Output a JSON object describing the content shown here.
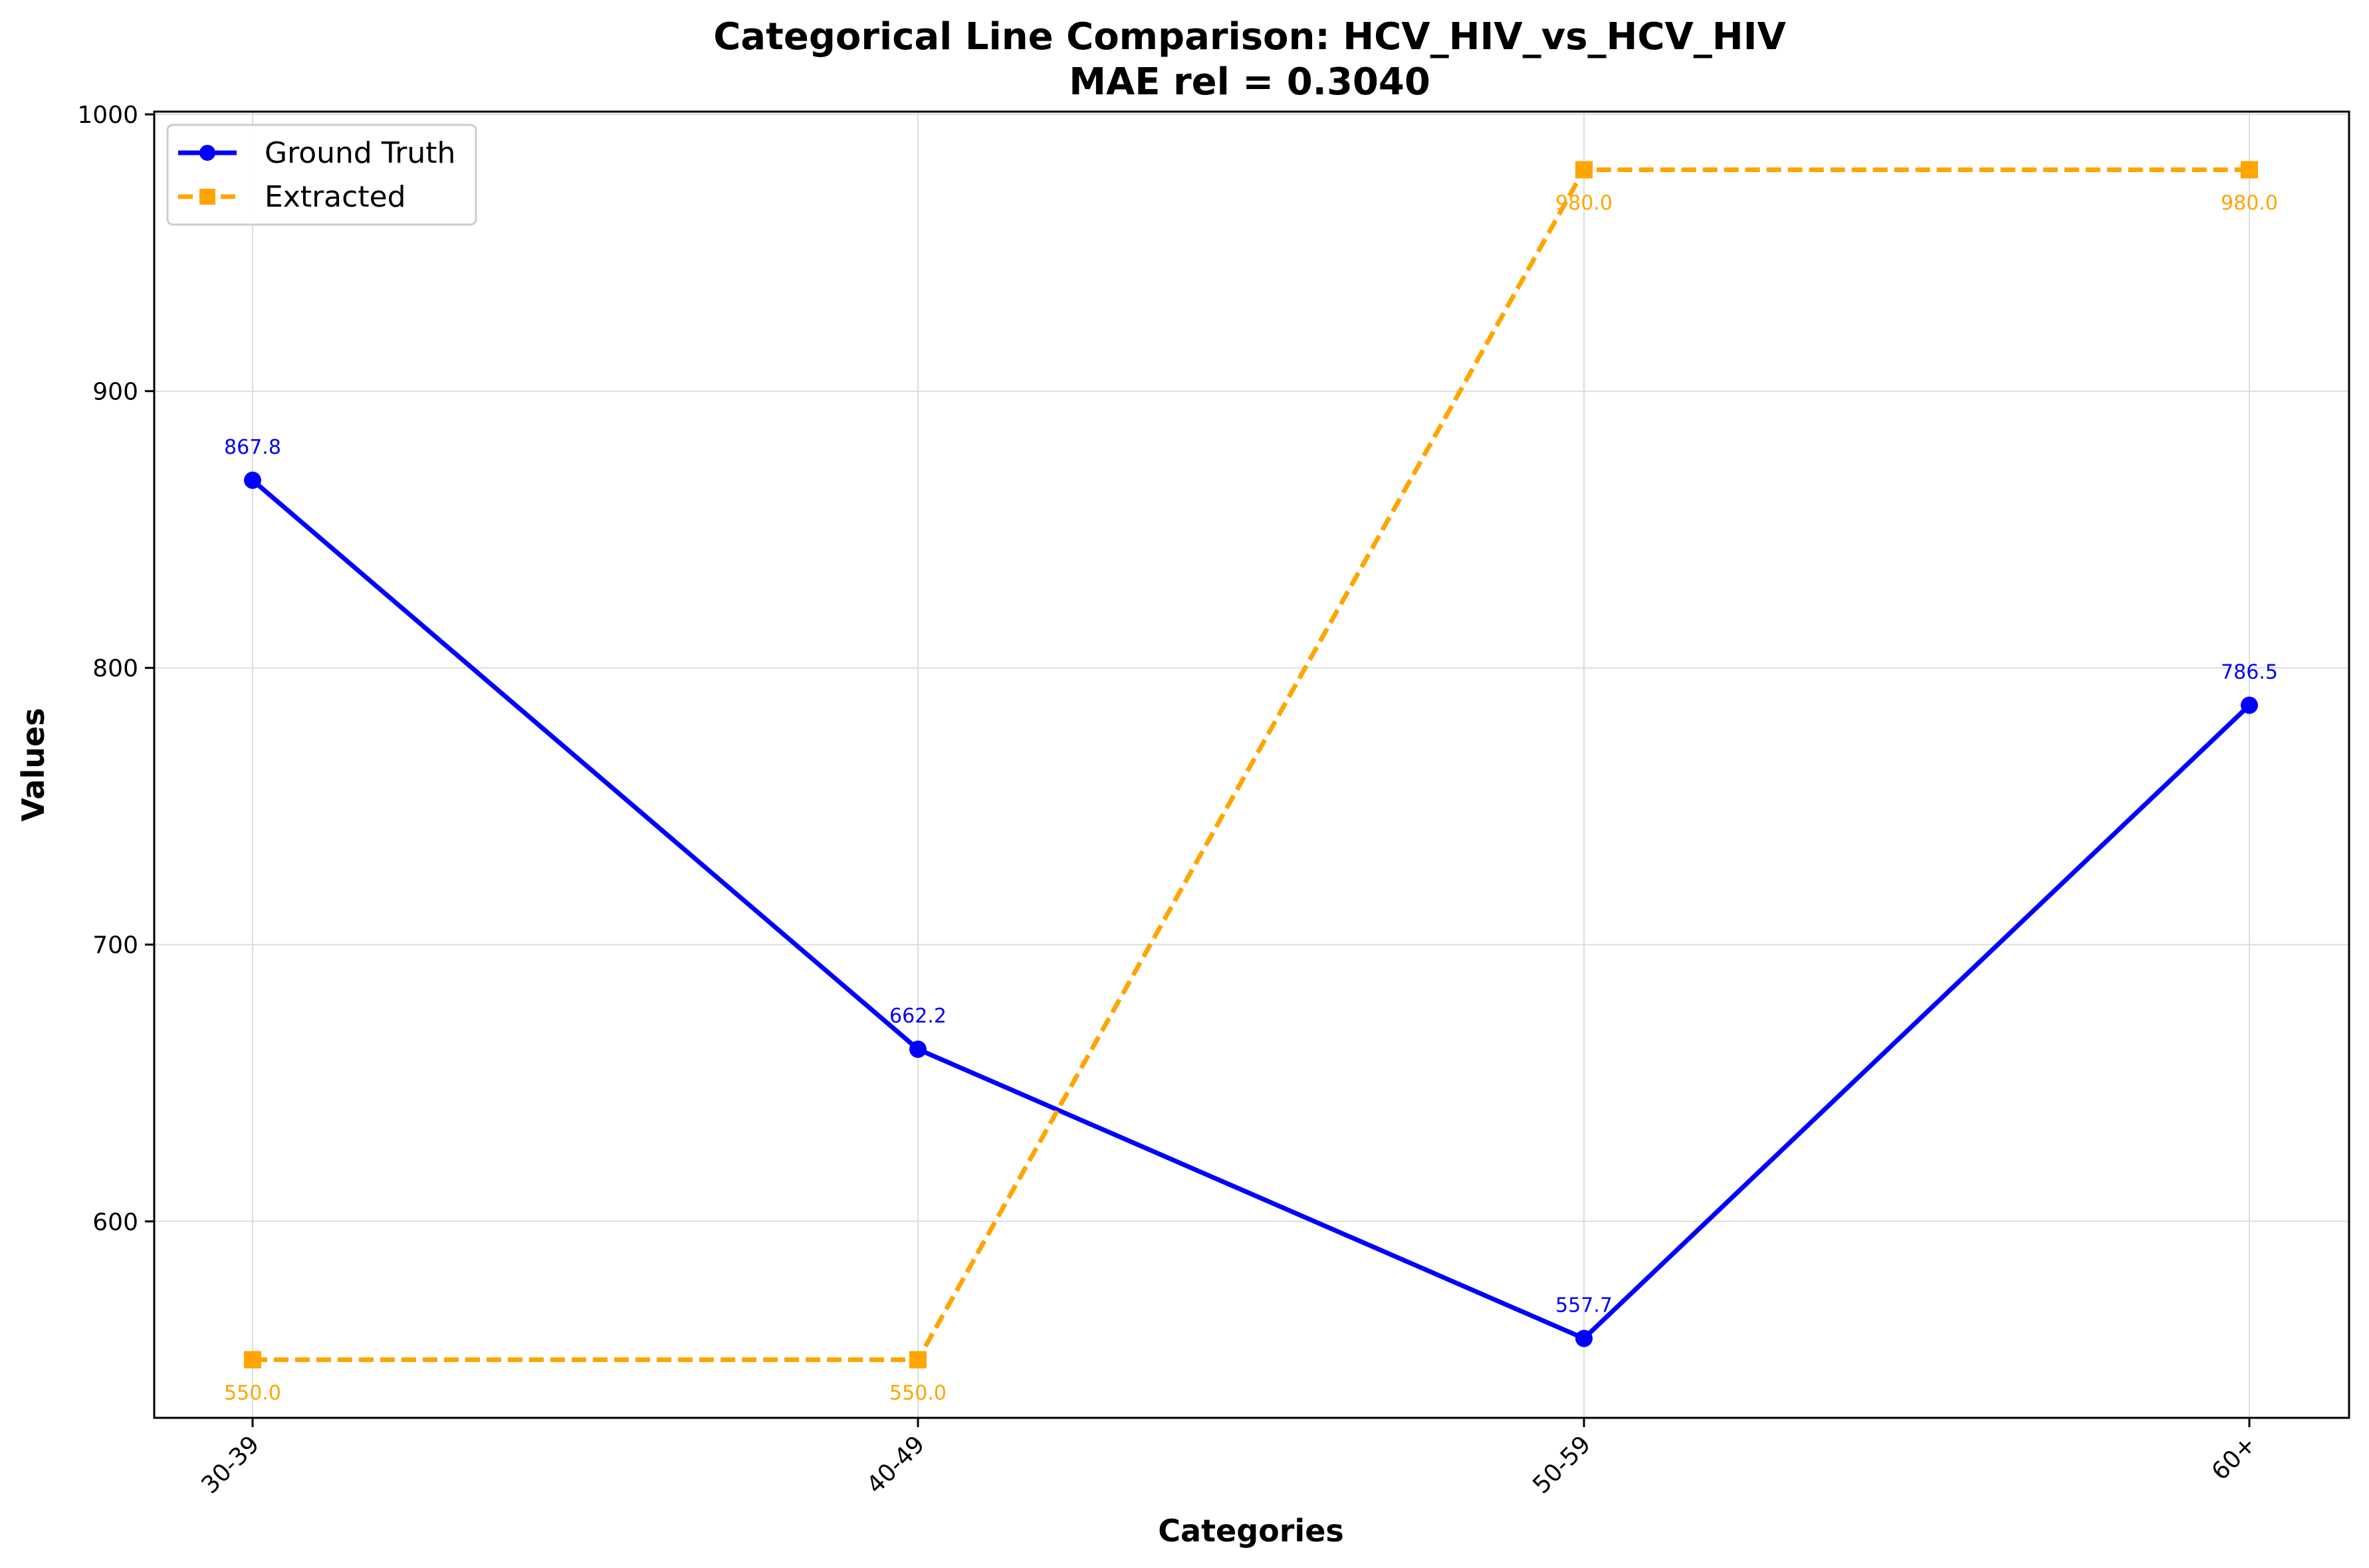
{
  "chart_data": {
    "type": "line",
    "title": "Categorical Line Comparison: HCV_HIV_vs_HCV_HIV",
    "subtitle": "MAE rel = 0.3040",
    "xlabel": "Categories",
    "ylabel": "Values",
    "categories": [
      "30-39",
      "40-49",
      "50-59",
      "60+"
    ],
    "ylim": [
      529,
      1001
    ],
    "yticks": [
      600,
      700,
      800,
      900,
      1000
    ],
    "grid": true,
    "legend_position": "upper-left",
    "series": [
      {
        "name": "Ground Truth",
        "values": [
          867.8,
          662.2,
          557.7,
          786.5
        ],
        "labels": [
          "867.8",
          "662.2",
          "557.7",
          "786.5"
        ],
        "color": "#0000ff",
        "line_style": "solid",
        "marker": "circle",
        "label_position": "above"
      },
      {
        "name": "Extracted",
        "values": [
          550.0,
          550.0,
          980.0,
          980.0
        ],
        "labels": [
          "550.0",
          "550.0",
          "980.0",
          "980.0"
        ],
        "color": "#ffa500",
        "line_style": "dashed",
        "marker": "square",
        "label_position": "below"
      }
    ]
  }
}
